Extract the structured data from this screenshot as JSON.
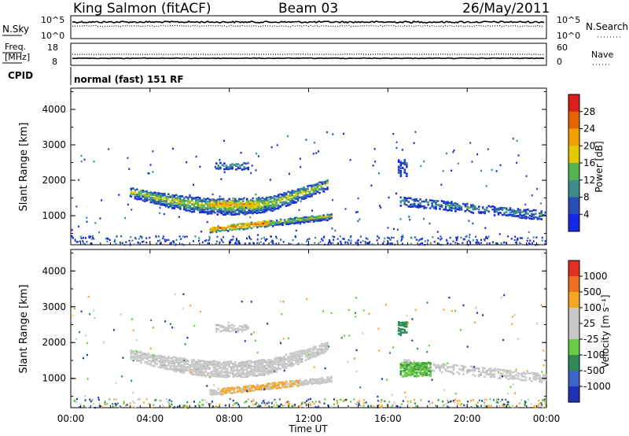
{
  "header": {
    "station": "King Salmon (fitACF)",
    "beam": "Beam 03",
    "date": "26/May/2011"
  },
  "noise_panel": {
    "left_label": "N.Sky",
    "right_label": "N.Search",
    "left_ticks": [
      "10^5",
      "10^0"
    ],
    "right_ticks": [
      "10^5",
      "10^0"
    ]
  },
  "freq_panel": {
    "left_label_1": "Freq.",
    "left_label_2": "[MHz]",
    "right_label": "Nave",
    "left_ticks": [
      "18",
      "8"
    ],
    "right_ticks": [
      "60",
      "0"
    ]
  },
  "cpid": {
    "label": "CPID",
    "text": "normal (fast) 151 RF"
  },
  "chart_data": [
    {
      "type": "heatmap",
      "name": "power",
      "ylabel": "Slant Range [km]",
      "ylim": [
        180,
        4600
      ],
      "yticks": [
        "1000",
        "2000",
        "3000",
        "4000"
      ],
      "xlabel": "Time UT",
      "xlim": [
        "00:00",
        "24:00"
      ],
      "xticks": [
        "00:00",
        "04:00",
        "08:00",
        "12:00",
        "16:00",
        "20:00",
        "00:00"
      ],
      "colorbar_label": "Power [dB]",
      "colorbar_ticks": [
        "28",
        "24",
        "20",
        "16",
        "12",
        "8",
        "4"
      ],
      "colorbar_range": [
        0,
        30
      ]
    },
    {
      "type": "heatmap",
      "name": "velocity",
      "ylabel": "Slant Range [km]",
      "ylim": [
        180,
        4600
      ],
      "yticks": [
        "1000",
        "2000",
        "3000",
        "4000"
      ],
      "xlabel": "Time UT",
      "xlim": [
        "00:00",
        "24:00"
      ],
      "xticks": [
        "00:00",
        "04:00",
        "08:00",
        "12:00",
        "16:00",
        "20:00",
        "00:00"
      ],
      "colorbar_label": "Velocity [m s⁻¹]",
      "colorbar_ticks": [
        "1000",
        "500",
        "100",
        "25",
        "-25",
        "-100",
        "-500",
        "-1000"
      ]
    }
  ],
  "colors": {
    "power_scale": [
      "#1428e6",
      "#2850b4",
      "#3c8c8c",
      "#55b450",
      "#e6c800",
      "#f0a000",
      "#e66400",
      "#dc1e1e"
    ],
    "velocity_scale": [
      "#1e32b4",
      "#3c64c8",
      "#2e8b57",
      "#66cc44",
      "#c8c8c8",
      "#c8c8c8",
      "#f5a623",
      "#f07020",
      "#e03020"
    ]
  }
}
